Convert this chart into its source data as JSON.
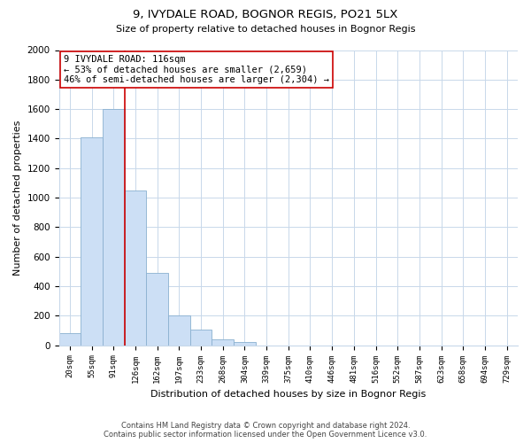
{
  "title": "9, IVYDALE ROAD, BOGNOR REGIS, PO21 5LX",
  "subtitle": "Size of property relative to detached houses in Bognor Regis",
  "xlabel": "Distribution of detached houses by size in Bognor Regis",
  "ylabel": "Number of detached properties",
  "bar_labels": [
    "20sqm",
    "55sqm",
    "91sqm",
    "126sqm",
    "162sqm",
    "197sqm",
    "233sqm",
    "268sqm",
    "304sqm",
    "339sqm",
    "375sqm",
    "410sqm",
    "446sqm",
    "481sqm",
    "516sqm",
    "552sqm",
    "587sqm",
    "623sqm",
    "658sqm",
    "694sqm",
    "729sqm"
  ],
  "bar_values": [
    80,
    1410,
    1600,
    1050,
    490,
    200,
    105,
    40,
    20,
    0,
    0,
    0,
    0,
    0,
    0,
    0,
    0,
    0,
    0,
    0,
    0
  ],
  "bar_color": "#ccdff5",
  "bar_edge_color": "#8ab0d0",
  "vline_color": "#cc0000",
  "vline_x": 2.5,
  "ylim": [
    0,
    2000
  ],
  "yticks": [
    0,
    200,
    400,
    600,
    800,
    1000,
    1200,
    1400,
    1600,
    1800,
    2000
  ],
  "annotation_title": "9 IVYDALE ROAD: 116sqm",
  "annotation_line1": "← 53% of detached houses are smaller (2,659)",
  "annotation_line2": "46% of semi-detached houses are larger (2,304) →",
  "footer_line1": "Contains HM Land Registry data © Crown copyright and database right 2024.",
  "footer_line2": "Contains public sector information licensed under the Open Government Licence v3.0.",
  "bg_color": "#ffffff",
  "grid_color": "#c8d8ea"
}
